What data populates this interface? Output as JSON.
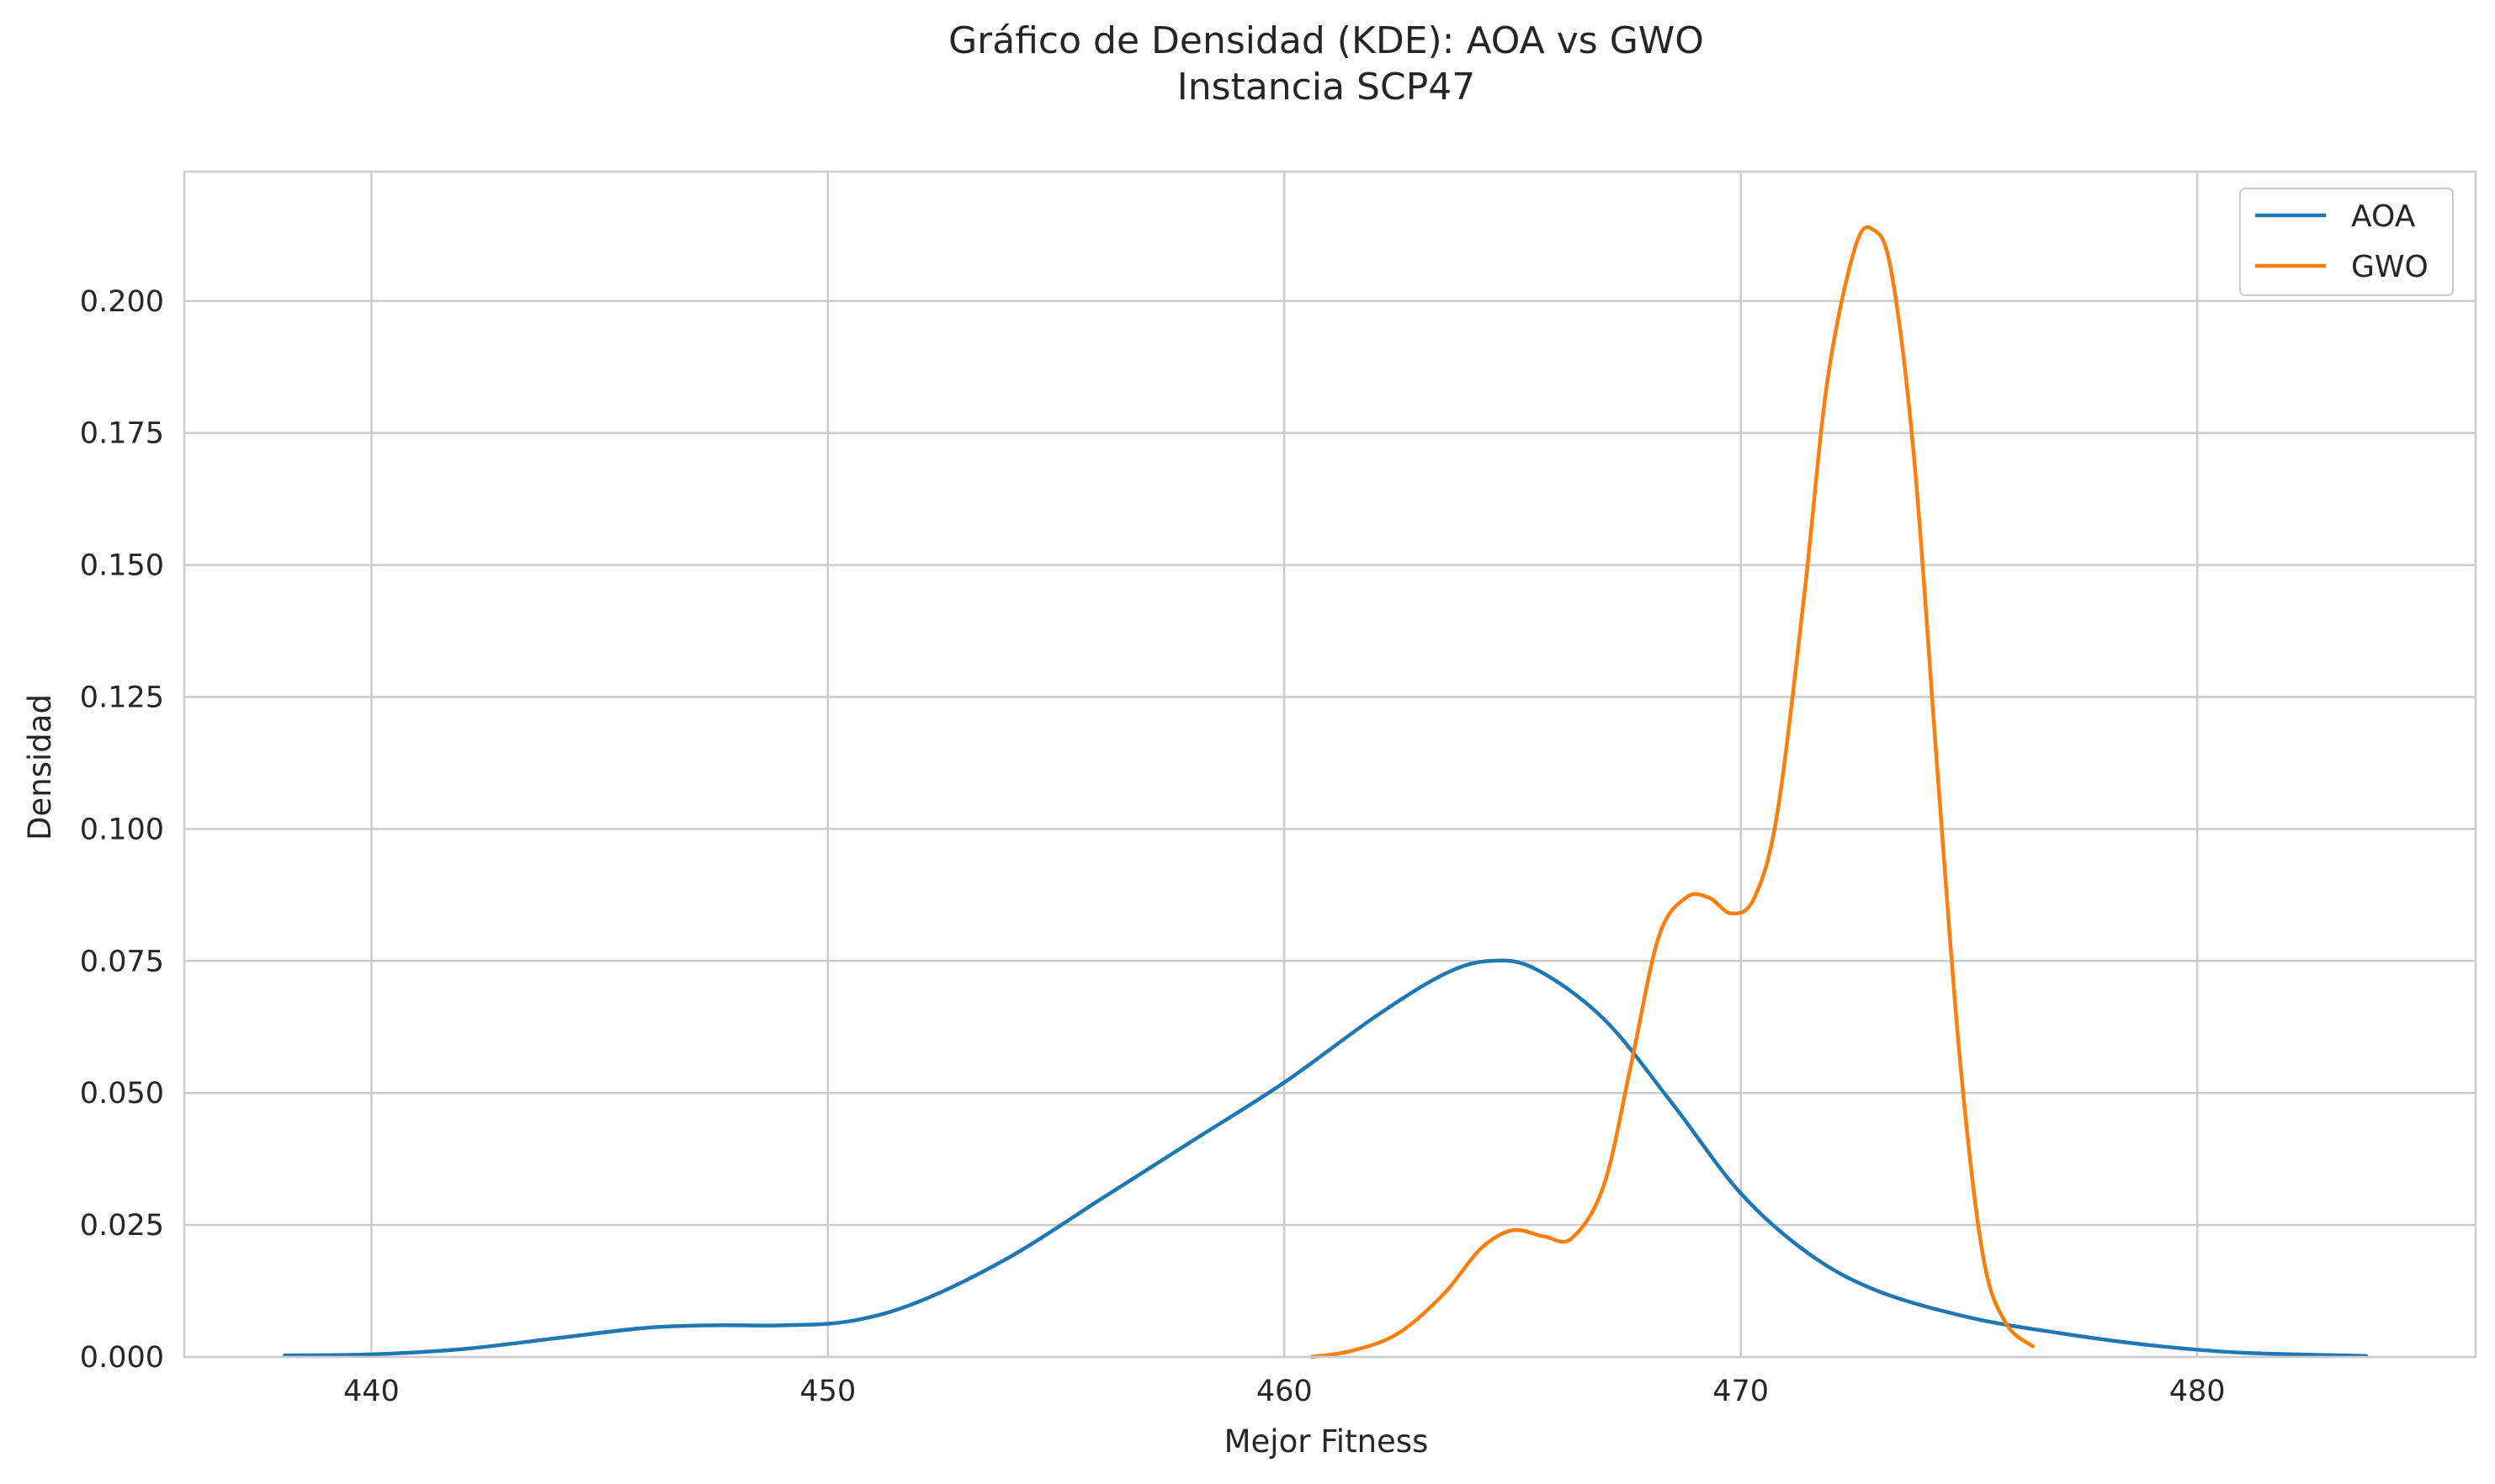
{
  "chart_data": {
    "type": "line",
    "title": "Gráfico de Densidad (KDE): AOA vs GWO",
    "subtitle": "Instancia SCP47",
    "xlabel": "Mejor Fitness",
    "ylabel": "Densidad",
    "xlim": [
      435.9,
      486.1
    ],
    "ylim": [
      0,
      0.2245
    ],
    "xticks": [
      440,
      450,
      460,
      470,
      480
    ],
    "xtick_labels": [
      "440",
      "450",
      "460",
      "470",
      "480"
    ],
    "yticks": [
      0,
      0.025,
      0.05,
      0.075,
      0.1,
      0.125,
      0.15,
      0.175,
      0.2
    ],
    "ytick_labels": [
      "0.000",
      "0.025",
      "0.050",
      "0.075",
      "0.100",
      "0.125",
      "0.150",
      "0.175",
      "0.200"
    ],
    "grid": true,
    "legend_position": "top-right",
    "series": [
      {
        "name": "AOA",
        "color": "#1f77b4",
        "points": [
          [
            438.1,
            0.0003
          ],
          [
            440,
            0.0005
          ],
          [
            442,
            0.0015
          ],
          [
            444,
            0.0035
          ],
          [
            446,
            0.0055
          ],
          [
            447.5,
            0.006
          ],
          [
            449,
            0.006
          ],
          [
            450.5,
            0.0068
          ],
          [
            452,
            0.0105
          ],
          [
            454,
            0.019
          ],
          [
            456,
            0.03
          ],
          [
            458,
            0.041
          ],
          [
            460,
            0.052
          ],
          [
            462,
            0.0645
          ],
          [
            463.5,
            0.0725
          ],
          [
            464.5,
            0.075
          ],
          [
            465.5,
            0.0735
          ],
          [
            467,
            0.064
          ],
          [
            468.5,
            0.048
          ],
          [
            470,
            0.031
          ],
          [
            471.5,
            0.0195
          ],
          [
            473,
            0.0125
          ],
          [
            475,
            0.0075
          ],
          [
            477,
            0.0045
          ],
          [
            479,
            0.0022
          ],
          [
            481,
            0.0008
          ],
          [
            483.7,
            0.0002
          ]
        ]
      },
      {
        "name": "GWO",
        "color": "#ff7f0e",
        "points": [
          [
            460.6,
            0.0
          ],
          [
            461.5,
            0.0012
          ],
          [
            462.5,
            0.0045
          ],
          [
            463.5,
            0.012
          ],
          [
            464.3,
            0.0205
          ],
          [
            465,
            0.024
          ],
          [
            465.7,
            0.0228
          ],
          [
            466.3,
            0.0225
          ],
          [
            467,
            0.0325
          ],
          [
            467.6,
            0.0555
          ],
          [
            468.2,
            0.0795
          ],
          [
            468.8,
            0.087
          ],
          [
            469.3,
            0.087
          ],
          [
            469.8,
            0.084
          ],
          [
            470.3,
            0.087
          ],
          [
            470.8,
            0.103
          ],
          [
            471.4,
            0.145
          ],
          [
            471.9,
            0.185
          ],
          [
            472.5,
            0.21
          ],
          [
            472.9,
            0.2135
          ],
          [
            473.3,
            0.2055
          ],
          [
            473.8,
            0.17
          ],
          [
            474.3,
            0.112
          ],
          [
            474.8,
            0.0565
          ],
          [
            475.3,
            0.0195
          ],
          [
            475.8,
            0.0065
          ],
          [
            476.4,
            0.002
          ]
        ]
      }
    ]
  }
}
